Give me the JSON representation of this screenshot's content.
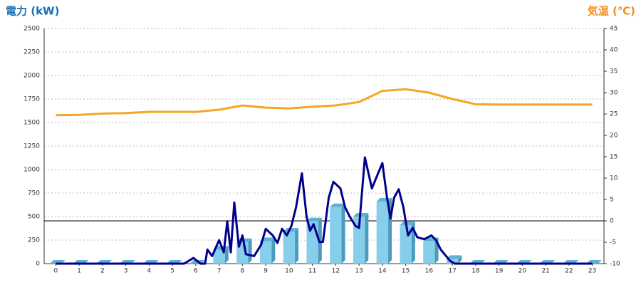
{
  "chart_data": {
    "type": "bar",
    "y_title": "電力 (kW)",
    "y2_title": "気温 (℃)",
    "categories": [
      "0",
      "1",
      "2",
      "3",
      "4",
      "5",
      "6",
      "7",
      "8",
      "9",
      "10",
      "11",
      "12",
      "13",
      "14",
      "15",
      "16",
      "17",
      "18",
      "19",
      "20",
      "21",
      "22",
      "23"
    ],
    "series": [
      {
        "name": "電力",
        "color": "#87ceeb",
        "values": [
          0,
          0,
          0,
          0,
          0,
          0,
          0,
          150,
          230,
          240,
          340,
          450,
          600,
          500,
          660,
          410,
          240,
          50,
          0,
          0,
          0,
          0,
          0,
          0
        ]
      },
      {
        "name": "気温",
        "color": "#f5a623",
        "axis": "y2",
        "type": "line",
        "values": [
          24.7,
          24.8,
          25.1,
          25.2,
          25.5,
          25.5,
          25.5,
          26,
          27,
          26.5,
          26.3,
          26.7,
          27,
          27.8,
          30.4,
          30.8,
          30,
          28.5,
          27.3,
          27.2,
          27.2,
          27.2,
          27.2,
          27.2
        ]
      }
    ],
    "detail_line": {
      "color": "#00008b",
      "x": [
        0,
        5.5,
        5.9,
        6.2,
        6.4,
        6.5,
        6.7,
        7.0,
        7.2,
        7.35,
        7.5,
        7.65,
        7.85,
        8.0,
        8.15,
        8.5,
        8.8,
        9.0,
        9.3,
        9.5,
        9.7,
        9.9,
        10.1,
        10.3,
        10.55,
        10.75,
        10.9,
        11.05,
        11.3,
        11.45,
        11.7,
        11.9,
        12.2,
        12.4,
        12.6,
        12.85,
        13.0,
        13.25,
        13.55,
        13.8,
        14.0,
        14.2,
        14.35,
        14.5,
        14.7,
        14.9,
        15.1,
        15.3,
        15.5,
        15.8,
        16.1,
        16.3,
        16.5,
        16.9,
        17.1,
        23
      ],
      "values": [
        0,
        0,
        60,
        0,
        0,
        150,
        80,
        250,
        120,
        450,
        120,
        650,
        180,
        300,
        100,
        80,
        200,
        370,
        300,
        220,
        370,
        300,
        400,
        600,
        960,
        500,
        350,
        420,
        230,
        230,
        700,
        870,
        800,
        600,
        500,
        400,
        380,
        1130,
        800,
        950,
        1070,
        700,
        480,
        700,
        790,
        600,
        300,
        380,
        280,
        260,
        300,
        250,
        150,
        30,
        0,
        0
      ]
    },
    "ylim": [
      0,
      2500
    ],
    "yticks": [
      0,
      250,
      500,
      750,
      1000,
      1250,
      1500,
      1750,
      2000,
      2250,
      2500
    ],
    "y2lim": [
      -10,
      45
    ],
    "y2ticks": [
      -10,
      -5,
      0,
      5,
      10,
      15,
      20,
      25,
      30,
      35,
      40,
      45
    ],
    "grid": true,
    "y2_zero_line": true
  }
}
